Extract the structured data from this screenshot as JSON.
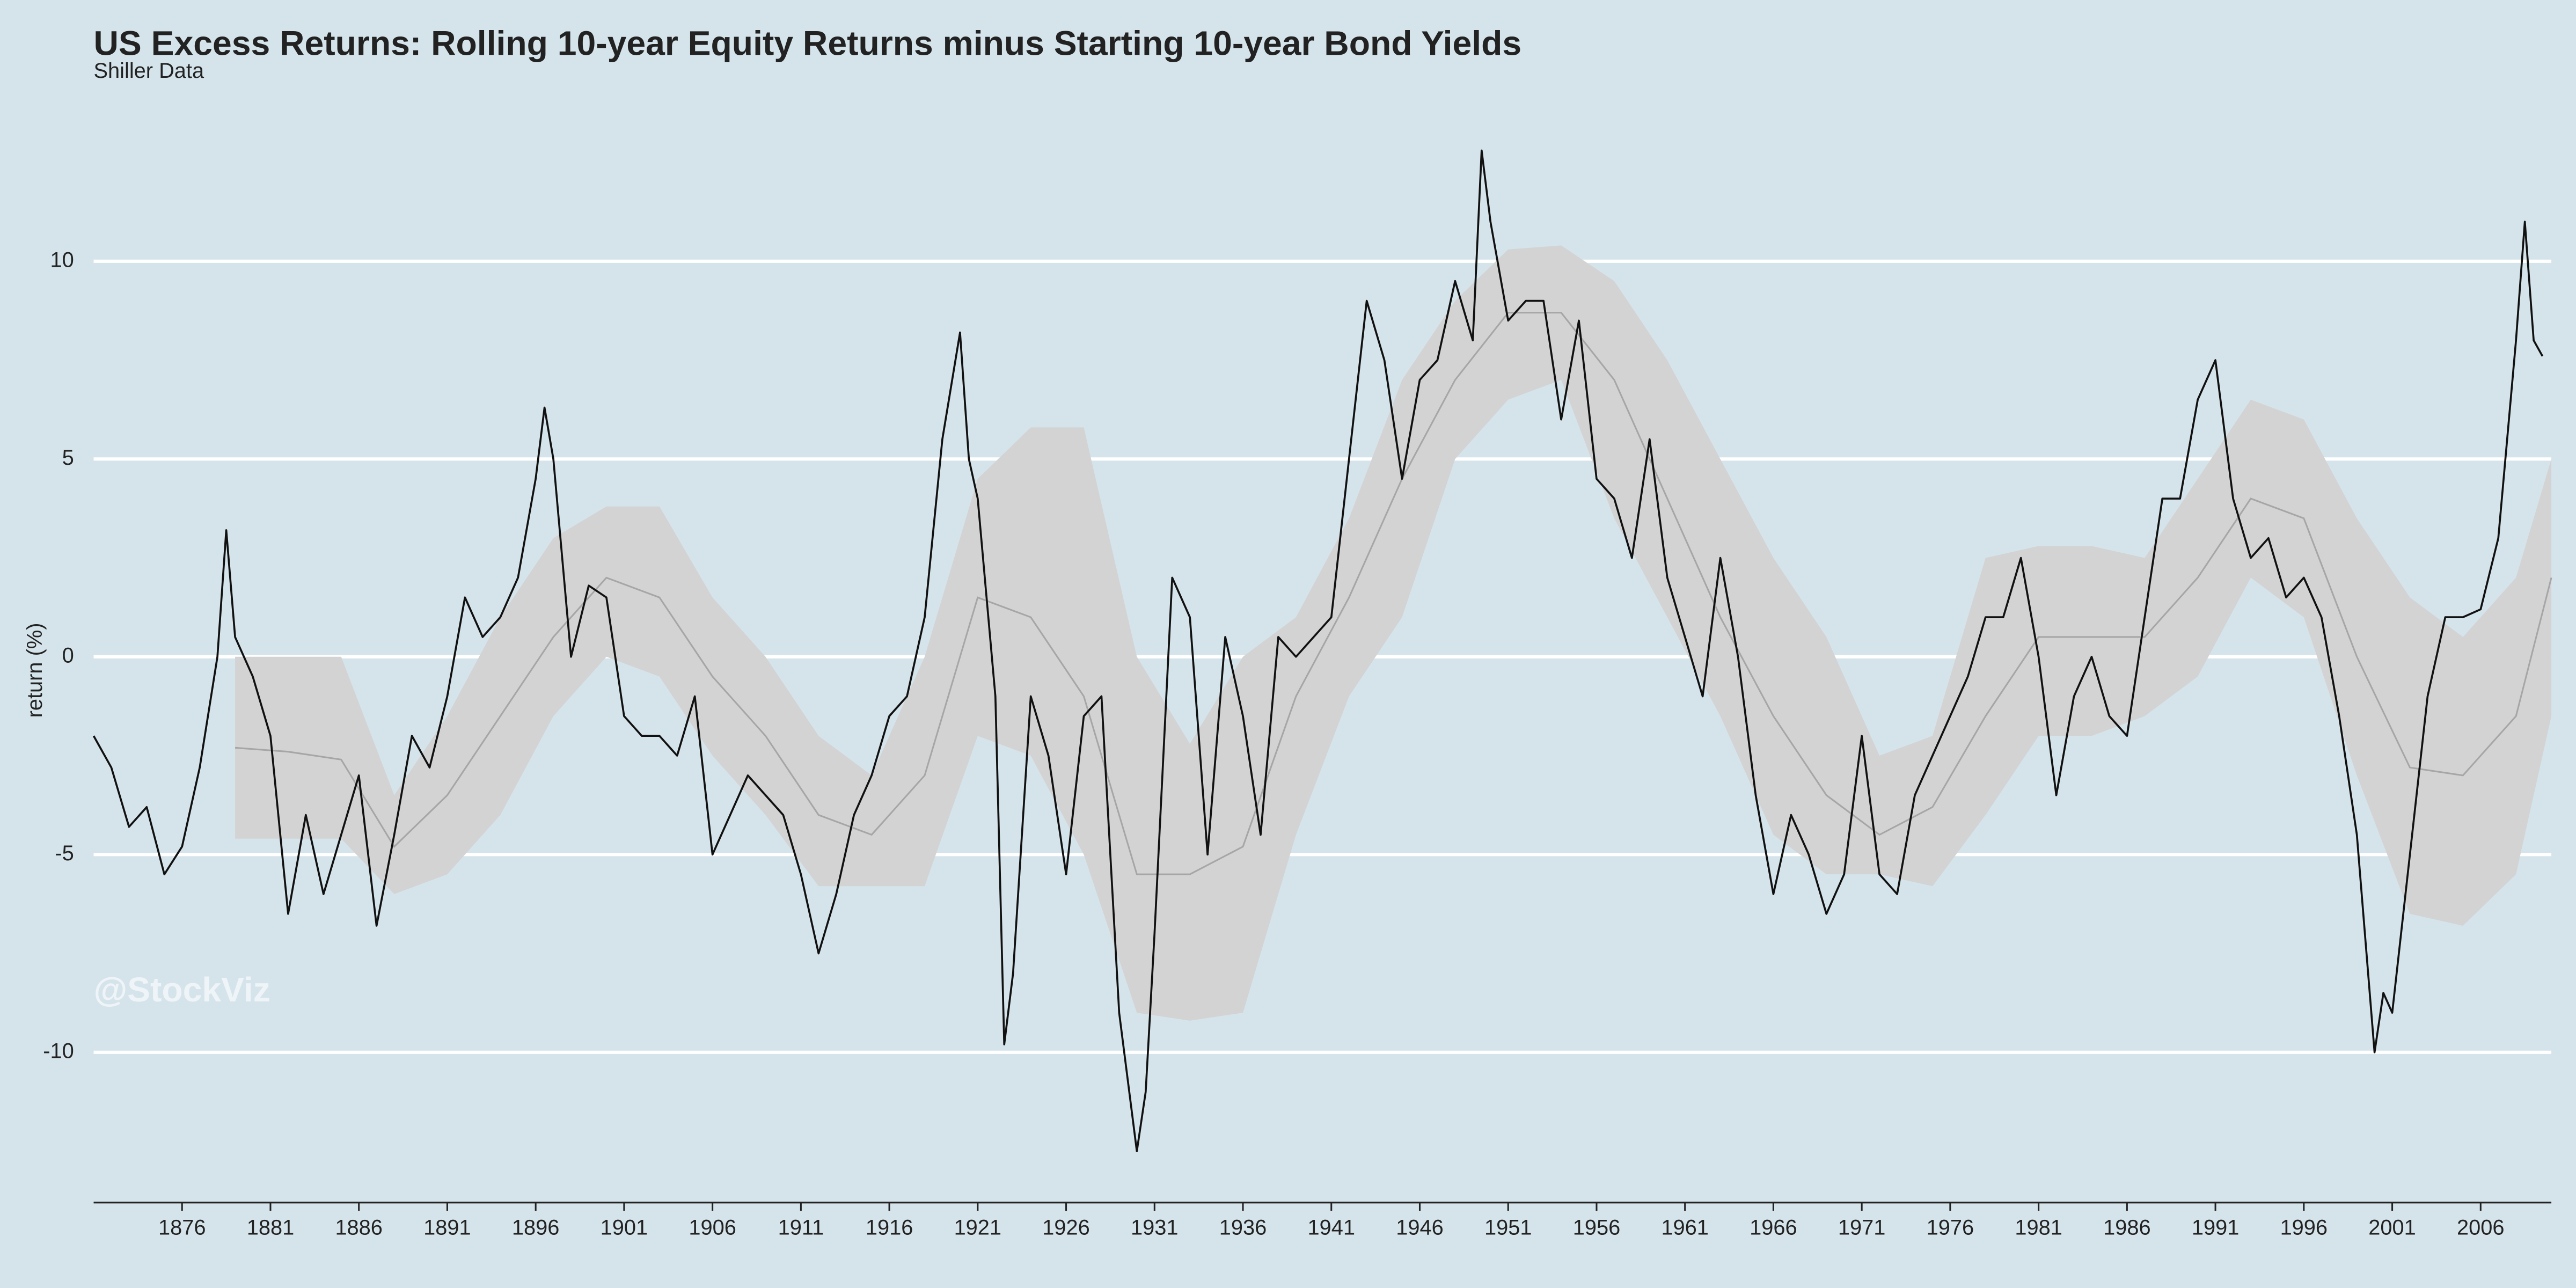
{
  "chart_data": {
    "type": "line",
    "title": "US Excess Returns: Rolling 10-year Equity Returns minus Starting 10-year Bond Yields",
    "subtitle": "Shiller Data",
    "y_label": "return (%)",
    "watermark": "@StockViz",
    "xlim": [
      1871,
      2010
    ],
    "xticks": [
      1876,
      1881,
      1886,
      1891,
      1896,
      1901,
      1906,
      1911,
      1916,
      1921,
      1926,
      1931,
      1936,
      1941,
      1946,
      1951,
      1956,
      1961,
      1966,
      1971,
      1976,
      1981,
      1986,
      1991,
      1996,
      2001,
      2006
    ],
    "ylim": [
      -13.8,
      13.2
    ],
    "yticks": [
      -10,
      -5,
      0,
      5,
      10
    ],
    "grid": true,
    "x": [
      1871,
      1872,
      1873,
      1874,
      1875,
      1876,
      1877,
      1878,
      1878.5,
      1879,
      1880,
      1881,
      1882,
      1883,
      1884,
      1885,
      1886,
      1887,
      1888,
      1889,
      1890,
      1891,
      1892,
      1893,
      1894,
      1895,
      1896,
      1896.5,
      1897,
      1898,
      1899,
      1900,
      1901,
      1902,
      1903,
      1904,
      1905,
      1906,
      1907,
      1908,
      1909,
      1910,
      1911,
      1912,
      1913,
      1914,
      1915,
      1916,
      1917,
      1918,
      1919,
      1920,
      1920.5,
      1921,
      1922,
      1922.5,
      1923,
      1924,
      1925,
      1926,
      1927,
      1928,
      1929,
      1930,
      1930.5,
      1931,
      1932,
      1933,
      1934,
      1935,
      1936,
      1937,
      1938,
      1939,
      1940,
      1941,
      1942,
      1943,
      1944,
      1945,
      1946,
      1947,
      1948,
      1949,
      1949.5,
      1950,
      1951,
      1952,
      1953,
      1954,
      1955,
      1956,
      1957,
      1958,
      1959,
      1960,
      1961,
      1962,
      1963,
      1964,
      1965,
      1966,
      1967,
      1968,
      1969,
      1970,
      1971,
      1972,
      1973,
      1974,
      1975,
      1976,
      1977,
      1978,
      1979,
      1980,
      1981,
      1982,
      1983,
      1984,
      1985,
      1986,
      1987,
      1988,
      1989,
      1990,
      1991,
      1992,
      1993,
      1994,
      1995,
      1996,
      1997,
      1998,
      1999,
      2000,
      2000.5,
      2001,
      2002,
      2003,
      2004,
      2005,
      2006,
      2007,
      2008,
      2008.5,
      2009,
      2009.5
    ],
    "series": [
      {
        "color": "#111111",
        "values": [
          -2,
          -2.8,
          -4.3,
          -3.8,
          -5.5,
          -4.8,
          -2.8,
          0,
          3.2,
          0.5,
          -0.5,
          -2,
          -6.5,
          -4,
          -6,
          -4.5,
          -3,
          -6.8,
          -4.5,
          -2,
          -2.8,
          -1,
          1.5,
          0.5,
          1,
          2,
          4.5,
          6.3,
          5,
          0,
          1.8,
          1.5,
          -1.5,
          -2,
          -2,
          -2.5,
          -1,
          -5,
          -4,
          -3,
          -3.5,
          -4,
          -5.5,
          -7.5,
          -6,
          -4,
          -3,
          -1.5,
          -1,
          1,
          5.5,
          8.2,
          5,
          4,
          -1,
          -9.8,
          -8,
          -1,
          -2.5,
          -5.5,
          -1.5,
          -1,
          -9,
          -12.5,
          -11,
          -7,
          2,
          1,
          -5,
          0.5,
          -1.5,
          -4.5,
          0.5,
          0,
          0.5,
          1,
          5,
          9,
          7.5,
          4.5,
          7,
          7.5,
          9.5,
          8,
          12.8,
          11,
          8.5,
          9,
          9,
          6,
          8.5,
          4.5,
          4,
          2.5,
          5.5,
          2,
          0.5,
          -1,
          2.5,
          0,
          -3.5,
          -6,
          -4,
          -5,
          -6.5,
          -5.5,
          -2,
          -5.5,
          -6,
          -3.5,
          -2.5,
          -1.5,
          -0.5,
          1,
          1,
          2.5,
          0,
          -3.5,
          -1,
          0,
          -1.5,
          -2,
          1,
          4,
          4,
          6.5,
          7.5,
          4,
          2.5,
          3,
          1.5,
          2,
          1,
          -1.5,
          -4.5,
          -10,
          -8.5,
          -9,
          -5,
          -1,
          1,
          1,
          1.2,
          3,
          8,
          11,
          8,
          7.6
        ]
      }
    ],
    "band": {
      "fill": "#d3d3d3",
      "center_color": "#a6a6a6",
      "x": [
        1879,
        1882,
        1885,
        1888,
        1891,
        1894,
        1897,
        1900,
        1903,
        1906,
        1909,
        1912,
        1915,
        1918,
        1921,
        1924,
        1927,
        1930,
        1933,
        1936,
        1939,
        1942,
        1945,
        1948,
        1951,
        1954,
        1957,
        1960,
        1963,
        1966,
        1969,
        1972,
        1975,
        1978,
        1981,
        1984,
        1987,
        1990,
        1993,
        1996,
        1999,
        2002,
        2005,
        2008,
        2010
      ],
      "center": [
        -2.3,
        -2.4,
        -2.6,
        -4.8,
        -3.5,
        -1.5,
        0.5,
        2,
        1.5,
        -0.5,
        -2,
        -4,
        -4.5,
        -3,
        1.5,
        1,
        -1,
        -5.5,
        -5.5,
        -4.8,
        -1,
        1.5,
        4.5,
        7,
        8.7,
        8.7,
        7,
        4,
        1,
        -1.5,
        -3.5,
        -4.5,
        -3.8,
        -1.5,
        0.5,
        0.5,
        0.5,
        2,
        4,
        3.5,
        0,
        -2.8,
        -3,
        -1.5,
        2
      ],
      "lower": [
        -4.6,
        -4.6,
        -4.6,
        -6,
        -5.5,
        -4,
        -1.5,
        0,
        -0.5,
        -2.5,
        -4,
        -5.8,
        -5.8,
        -5.8,
        -2,
        -2.5,
        -5,
        -9,
        -9.2,
        -9,
        -4.5,
        -1,
        1,
        5,
        6.5,
        7,
        3.5,
        1,
        -1.5,
        -4.5,
        -5.5,
        -5.5,
        -5.8,
        -4,
        -2,
        -2,
        -1.5,
        -0.5,
        2,
        1,
        -3,
        -6.5,
        -6.8,
        -5.5,
        -1.5
      ],
      "upper": [
        0,
        0,
        0,
        -3.5,
        -1.5,
        1,
        3,
        3.8,
        3.8,
        1.5,
        0,
        -2,
        -3,
        0,
        4.5,
        5.8,
        5.8,
        0,
        -2.2,
        0,
        1,
        3.5,
        7,
        9,
        10.3,
        10.4,
        9.5,
        7.5,
        5,
        2.5,
        0.5,
        -2.5,
        -2,
        2.5,
        2.8,
        2.8,
        2.5,
        4.5,
        6.5,
        6,
        3.5,
        1.5,
        0.5,
        2,
        5
      ]
    }
  }
}
